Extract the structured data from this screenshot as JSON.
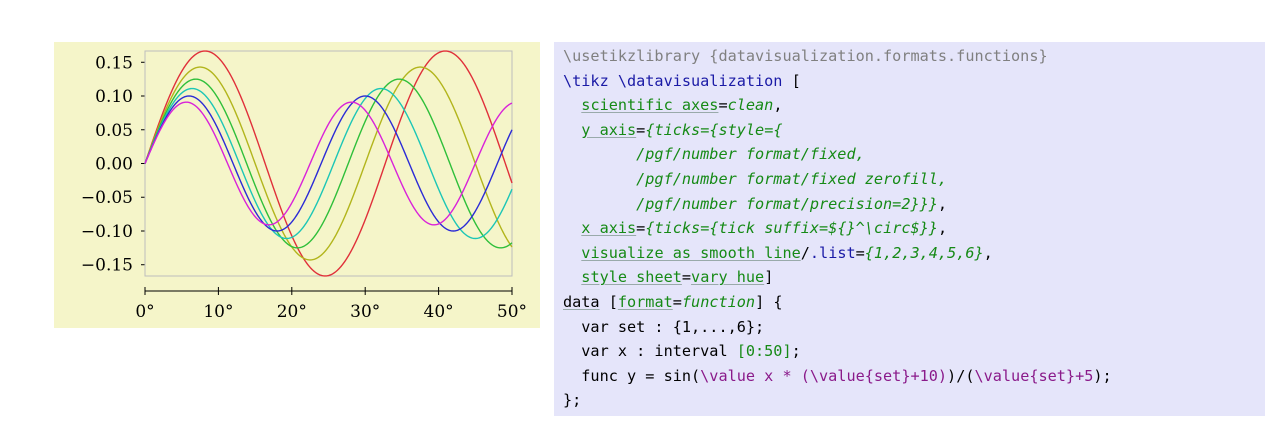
{
  "chart_data": {
    "type": "line",
    "x": [
      0,
      10,
      20,
      30,
      40,
      50
    ],
    "xlim": [
      0,
      50
    ],
    "ylim": [
      -0.15,
      0.15
    ],
    "xticks": [
      "0°",
      "10°",
      "20°",
      "30°",
      "40°",
      "50°"
    ],
    "yticks": [
      "0.15",
      "0.10",
      "0.05",
      "0.00",
      "−0.05",
      "−0.10",
      "−0.15"
    ],
    "ytick_values": [
      0.15,
      0.1,
      0.05,
      0.0,
      -0.05,
      -0.1,
      -0.15
    ],
    "xtick_values": [
      0,
      10,
      20,
      30,
      40,
      50
    ],
    "function": "sin(x * (set + 10)) / (set + 5)",
    "series": [
      {
        "set": 1,
        "color": "#e0303a"
      },
      {
        "set": 2,
        "color": "#b2b51c"
      },
      {
        "set": 3,
        "color": "#2fbf3a"
      },
      {
        "set": 4,
        "color": "#1cc6b6"
      },
      {
        "set": 5,
        "color": "#2b2bd6"
      },
      {
        "set": 6,
        "color": "#d922d9"
      }
    ],
    "grid": false
  },
  "code": [
    [
      {
        "t": "\\usetikzlibrary {datavisualization.formats.functions}",
        "c": "c-gray"
      }
    ],
    [
      {
        "t": "\\tikz \\datavisualization",
        "c": "c-blue"
      },
      {
        "t": " [",
        "c": "c-black"
      }
    ],
    [
      {
        "t": "  ",
        "c": "c-black"
      },
      {
        "t": "scientific axes",
        "c": "c-green ul"
      },
      {
        "t": "=",
        "c": "c-black"
      },
      {
        "t": "clean",
        "c": "c-green-it"
      },
      {
        "t": ",",
        "c": "c-black"
      }
    ],
    [
      {
        "t": "  ",
        "c": "c-black"
      },
      {
        "t": "y axis",
        "c": "c-green ul"
      },
      {
        "t": "=",
        "c": "c-black"
      },
      {
        "t": "{ticks={style={",
        "c": "c-green-it"
      }
    ],
    [
      {
        "t": "        /pgf/number format/fixed,",
        "c": "c-green-it"
      }
    ],
    [
      {
        "t": "        /pgf/number format/fixed zerofill,",
        "c": "c-green-it"
      }
    ],
    [
      {
        "t": "        /pgf/number format/precision=2}}}",
        "c": "c-green-it"
      },
      {
        "t": ",",
        "c": "c-black"
      }
    ],
    [
      {
        "t": "  ",
        "c": "c-black"
      },
      {
        "t": "x axis",
        "c": "c-green ul"
      },
      {
        "t": "=",
        "c": "c-black"
      },
      {
        "t": "{ticks={tick suffix=${}^\\circ$}}",
        "c": "c-green-it"
      },
      {
        "t": ",",
        "c": "c-black"
      }
    ],
    [
      {
        "t": "  ",
        "c": "c-black"
      },
      {
        "t": "visualize as smooth line",
        "c": "c-green ul"
      },
      {
        "t": "/",
        "c": "c-black"
      },
      {
        "t": ".list",
        "c": "c-blue"
      },
      {
        "t": "=",
        "c": "c-black"
      },
      {
        "t": "{1,2,3,4,5,6}",
        "c": "c-green-it"
      },
      {
        "t": ",",
        "c": "c-black"
      }
    ],
    [
      {
        "t": "  ",
        "c": "c-black"
      },
      {
        "t": "style sheet",
        "c": "c-green ul"
      },
      {
        "t": "=",
        "c": "c-black"
      },
      {
        "t": "vary hue",
        "c": "c-green ul"
      },
      {
        "t": "]",
        "c": "c-black"
      }
    ],
    [
      {
        "t": "data",
        "c": "c-black ul"
      },
      {
        "t": " [",
        "c": "c-black"
      },
      {
        "t": "format",
        "c": "c-green ul"
      },
      {
        "t": "=",
        "c": "c-black"
      },
      {
        "t": "function",
        "c": "c-green-it"
      },
      {
        "t": "] {",
        "c": "c-black"
      }
    ],
    [
      {
        "t": "  var set : {",
        "c": "c-black"
      },
      {
        "t": "1,...,6",
        "c": "c-black"
      },
      {
        "t": "};",
        "c": "c-black"
      }
    ],
    [
      {
        "t": "  var x : interval ",
        "c": "c-black"
      },
      {
        "t": "[0:50]",
        "c": "c-green"
      },
      {
        "t": ";",
        "c": "c-black"
      }
    ],
    [
      {
        "t": "  func y = sin(",
        "c": "c-black"
      },
      {
        "t": "\\value x * (\\value{set}+10)",
        "c": "c-purple"
      },
      {
        "t": ")/(",
        "c": "c-black"
      },
      {
        "t": "\\value{set}+5",
        "c": "c-purple"
      },
      {
        "t": ");",
        "c": "c-black"
      }
    ],
    [
      {
        "t": "};",
        "c": "c-black"
      }
    ]
  ]
}
